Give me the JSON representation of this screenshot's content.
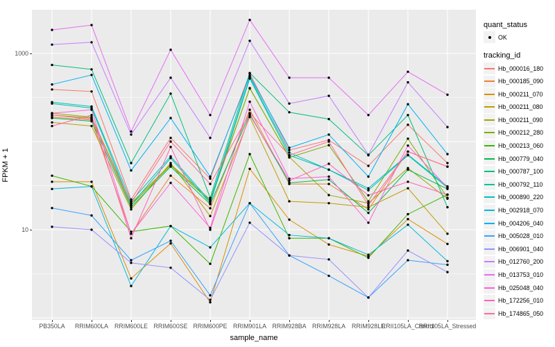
{
  "chart_data": {
    "type": "line",
    "title": "",
    "xlabel": "sample_name",
    "ylabel": "FPKM + 1",
    "y_scale": "log10",
    "y_tick_labels": [
      "1000",
      "10"
    ],
    "y_tick_values": [
      1000,
      10
    ],
    "ylim": [
      0.95,
      3100
    ],
    "grid": "white major/minor gridlines on grey panel",
    "legend_position": "right",
    "panel_bg": "#EBEBEB",
    "grid_color": "#FFFFFF",
    "axis_text_color": "#4D4D4D",
    "point_color": "#000000",
    "legend_key_bg": "#F2F2F2",
    "categories": [
      "PB350LA",
      "RRIM600LA",
      "RRIM600LE",
      "RRIM600SE",
      "RRIM600PE",
      "RRIM901LA",
      "RRIM928BA",
      "RRIM928LA",
      "RRIM928LE",
      "RRII105LA_Control",
      "RRII105LA_Stressed"
    ],
    "legend": {
      "quant_status_title": "quant_status",
      "quant_status_items": [
        "OK"
      ],
      "tracking_id_title": "tracking_id"
    },
    "series": [
      {
        "name": "Hb_000016_180",
        "color": "#F8766D",
        "values": [
          390,
          370,
          22,
          110,
          38,
          590,
          80,
          104,
          53,
          155,
          57
        ]
      },
      {
        "name": "Hb_000185_090",
        "color": "#EA8331",
        "values": [
          190,
          175,
          9,
          41,
          17.5,
          230,
          33,
          33,
          17,
          77,
          52
        ]
      },
      {
        "name": "Hb_000211_070",
        "color": "#D89000",
        "values": [
          35,
          35,
          2.8,
          7,
          1.5,
          49,
          13,
          6.8,
          5,
          13.2,
          6.9
        ]
      },
      {
        "name": "Hb_000211_080",
        "color": "#C09B00",
        "values": [
          165,
          150,
          17,
          57,
          14.3,
          190,
          21,
          20,
          18,
          29.5,
          9
        ]
      },
      {
        "name": "Hb_000211_090",
        "color": "#A3A500",
        "values": [
          210,
          190,
          20,
          55,
          22,
          400,
          67,
          24.7,
          20,
          50,
          22.5
        ]
      },
      {
        "name": "Hb_000212_280",
        "color": "#7CAE00",
        "values": [
          200,
          185,
          19,
          54,
          21,
          405,
          66,
          91,
          21,
          108,
          23
        ]
      },
      {
        "name": "Hb_000213_060",
        "color": "#39B600",
        "values": [
          41,
          31,
          9.5,
          11,
          4.1,
          72,
          8,
          8,
          4.8,
          15,
          25
        ]
      },
      {
        "name": "Hb_000779_040",
        "color": "#00BB4E",
        "values": [
          185,
          170,
          18,
          52,
          19.5,
          205,
          34,
          37,
          15.5,
          48,
          29
        ]
      },
      {
        "name": "Hb_000787_100",
        "color": "#00BF7D",
        "values": [
          740,
          660,
          57,
          350,
          23,
          600,
          215,
          180,
          70,
          200,
          18
        ]
      },
      {
        "name": "Hb_000792_110",
        "color": "#00C1A3",
        "values": [
          270,
          240,
          19,
          65,
          20,
          520,
          70,
          48,
          28,
          70,
          30
        ]
      },
      {
        "name": "Hb_000890_220",
        "color": "#00BFC4",
        "values": [
          280,
          250,
          21,
          68,
          21,
          540,
          75,
          48,
          29.5,
          71,
          31
        ]
      },
      {
        "name": "Hb_002918_070",
        "color": "#00BAE0",
        "values": [
          29,
          31,
          2.3,
          11,
          6.3,
          20,
          8.7,
          8,
          5.2,
          11.4,
          4.4
        ]
      },
      {
        "name": "Hb_004206_040",
        "color": "#00B0F6",
        "values": [
          445,
          570,
          47,
          185,
          40,
          560,
          85,
          120,
          40,
          265,
          72
        ]
      },
      {
        "name": "Hb_005028_010",
        "color": "#35A2FF",
        "values": [
          17.6,
          14.5,
          4.5,
          7.5,
          1.8,
          20,
          5.1,
          3.0,
          1.7,
          4.5,
          4.0
        ]
      },
      {
        "name": "Hb_006901_040",
        "color": "#9590FF",
        "values": [
          10.8,
          10,
          4.2,
          3.7,
          1.6,
          12,
          5.1,
          4.6,
          1.7,
          5.8,
          3.3
        ]
      },
      {
        "name": "Hb_012760_200",
        "color": "#C77CFF",
        "values": [
          1260,
          1340,
          120,
          530,
          110,
          1390,
          270,
          330,
          71,
          470,
          146
        ]
      },
      {
        "name": "Hb_013753_010",
        "color": "#E76BF3",
        "values": [
          1850,
          2100,
          130,
          1100,
          200,
          2400,
          530,
          530,
          200,
          620,
          340
        ]
      },
      {
        "name": "Hb_025048_040",
        "color": "#FA62DB",
        "values": [
          210,
          230,
          9,
          34,
          10.5,
          283,
          38,
          40,
          12,
          90,
          30
        ]
      },
      {
        "name": "Hb_172256_010",
        "color": "#FF62BC",
        "values": [
          150,
          200,
          8,
          87,
          10,
          200,
          36,
          56,
          24.6,
          35,
          25
        ]
      },
      {
        "name": "Hb_174865_050",
        "color": "#FF6A98",
        "values": [
          200,
          180,
          20,
          100,
          33,
          210,
          70,
          100,
          19,
          77,
          52
        ]
      }
    ]
  }
}
